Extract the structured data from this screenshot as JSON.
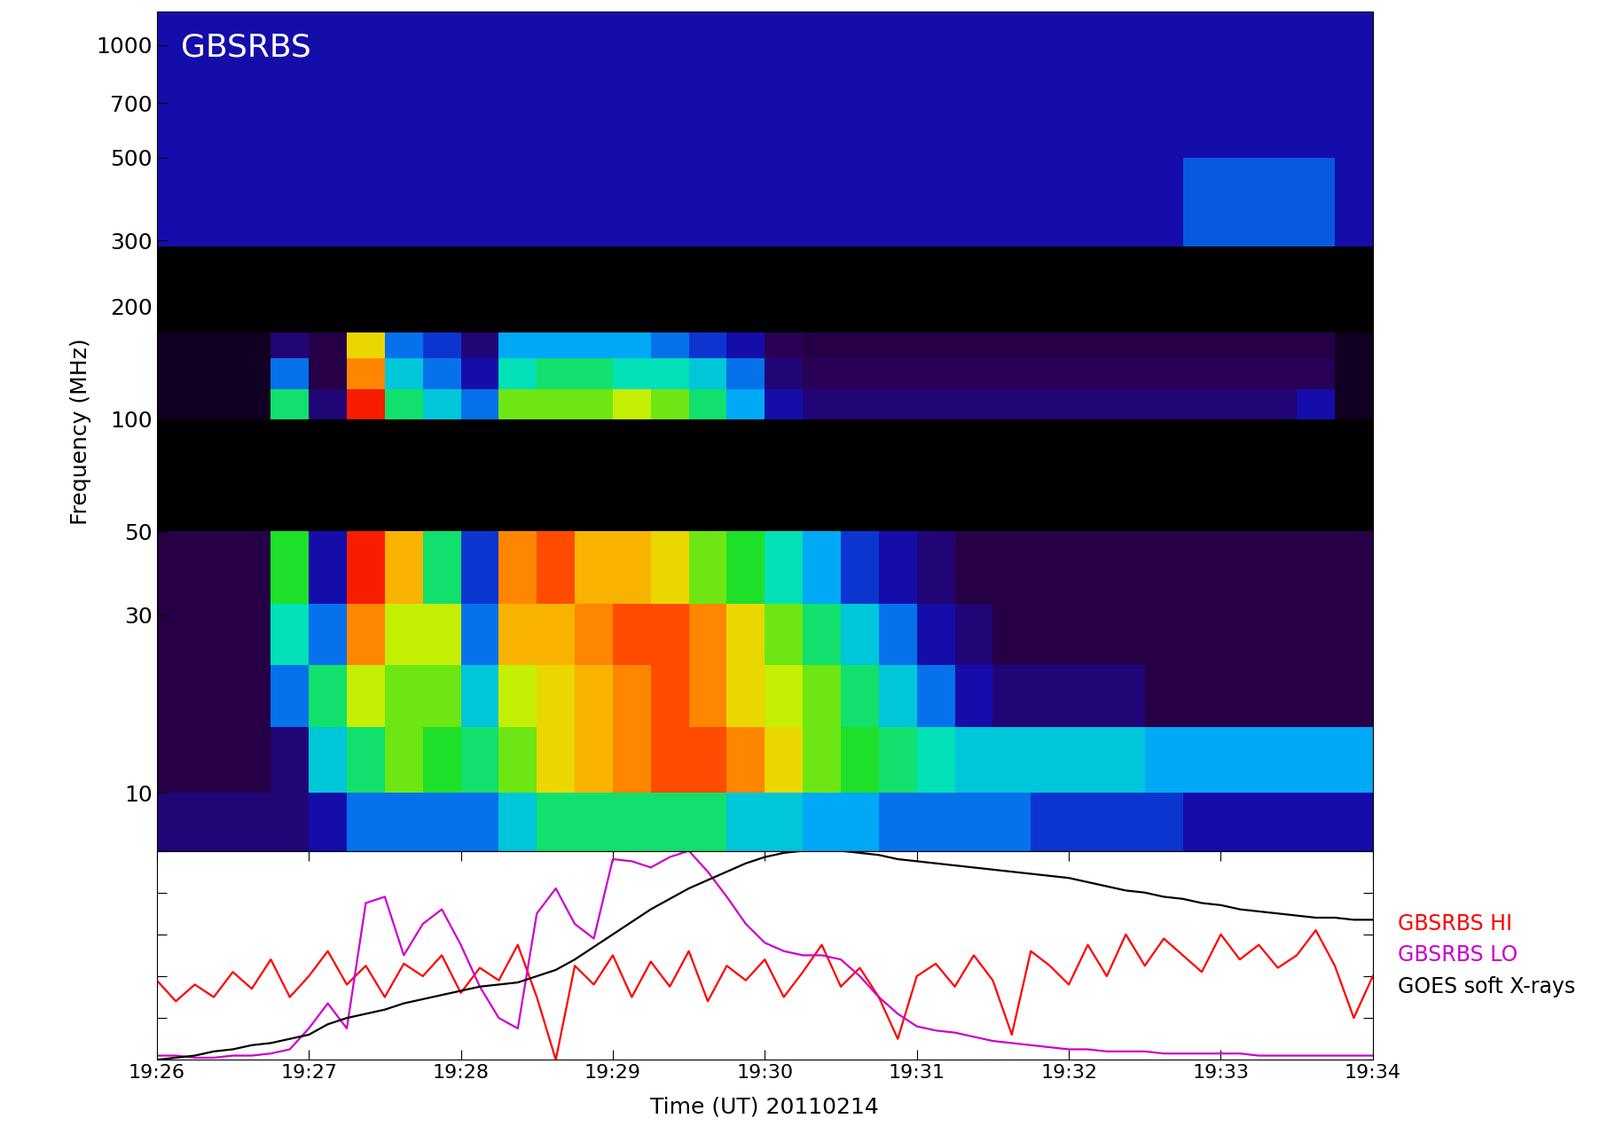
{
  "chart_data": [
    {
      "type": "heatmap",
      "title": "GBSRBS",
      "ylabel": "Frequency (MHz)",
      "log": "y",
      "tick_labels": "y",
      "xlim": [
        1166,
        1174
      ],
      "ylim": [
        7,
        1230
      ],
      "yticks": [
        10,
        30,
        50,
        100,
        200,
        300,
        500,
        700,
        1000
      ],
      "clim": [
        0,
        10
      ],
      "x_edges": [
        1166,
        1166.25,
        1166.5,
        1166.75,
        1167,
        1167.25,
        1167.5,
        1167.75,
        1168,
        1168.25,
        1168.5,
        1168.75,
        1169,
        1169.25,
        1169.5,
        1169.75,
        1170,
        1170.25,
        1170.5,
        1170.75,
        1171,
        1171.25,
        1171.5,
        1171.75,
        1172,
        1172.25,
        1172.5,
        1172.75,
        1173,
        1173.25,
        1173.5,
        1173.75,
        1174
      ],
      "y_edges": [
        7,
        10,
        15,
        22,
        32,
        50,
        100,
        120,
        145,
        170,
        290,
        500,
        800,
        1230
      ],
      "cells": [
        [
          1.5,
          1.5,
          1.5,
          1.5,
          2,
          3,
          3,
          3,
          3,
          4,
          5,
          5,
          5,
          5,
          5,
          4,
          4,
          3.5,
          3.5,
          3,
          3,
          3,
          3,
          2.5,
          2.5,
          2.5,
          2.5,
          2,
          2,
          2,
          2,
          2
        ],
        [
          1,
          1,
          1,
          1.5,
          4,
          5,
          6,
          5.5,
          5,
          6,
          7,
          7.5,
          8,
          8.5,
          8.5,
          8,
          7,
          6,
          5.5,
          5,
          4.5,
          4,
          4,
          4,
          4,
          4,
          3.5,
          3.5,
          3.5,
          3.5,
          3.5,
          3.5
        ],
        [
          1,
          1,
          1,
          3,
          5,
          6.5,
          6,
          6,
          4,
          6.5,
          7,
          7.5,
          8,
          8.5,
          8,
          7,
          6.5,
          6,
          5,
          4,
          3,
          2,
          1.5,
          1.5,
          1.5,
          1.5,
          1,
          1,
          1,
          1,
          1,
          1
        ],
        [
          1,
          1,
          1,
          4.5,
          3,
          8,
          6.5,
          6.5,
          3,
          7.5,
          7.5,
          8,
          8.5,
          8.5,
          8,
          7,
          6,
          5,
          4,
          3,
          2,
          1.5,
          1,
          1,
          1,
          1,
          1,
          1,
          1,
          1,
          1,
          1
        ],
        [
          1,
          1,
          1,
          5.5,
          2,
          9,
          7.5,
          5,
          2.5,
          8,
          8.5,
          7.5,
          7.5,
          7,
          6,
          5.5,
          4.5,
          3.5,
          2.5,
          2,
          1.5,
          1,
          1,
          1,
          1,
          1,
          1,
          1,
          1,
          1,
          1,
          1
        ],
        [
          null,
          null,
          null,
          null,
          null,
          null,
          null,
          null,
          null,
          null,
          null,
          null,
          null,
          null,
          null,
          null,
          null,
          null,
          null,
          null,
          null,
          null,
          null,
          null,
          null,
          null,
          null,
          null,
          null,
          null,
          null,
          null
        ],
        [
          0.5,
          0.5,
          0.5,
          5,
          1.5,
          9,
          5,
          4,
          3,
          6,
          6,
          6,
          6.5,
          6,
          5,
          3.5,
          2,
          1.5,
          1.5,
          1.5,
          1.5,
          1.5,
          1.5,
          1.5,
          1.5,
          1.5,
          1.5,
          1.5,
          1.5,
          1.5,
          2,
          0.5
        ],
        [
          0.5,
          0.5,
          0.5,
          3,
          1,
          8,
          4,
          3,
          2,
          4.5,
          5,
          5,
          4.5,
          4.5,
          4,
          3,
          1.5,
          1.2,
          1.2,
          1.2,
          1.2,
          1.2,
          1.2,
          1.2,
          1.2,
          1.2,
          1.2,
          1.2,
          1.2,
          1.2,
          1.2,
          0.5
        ],
        [
          0.5,
          0.5,
          0.5,
          1.5,
          1,
          7,
          3,
          2.5,
          1.5,
          3.5,
          3.5,
          3.5,
          3.5,
          3,
          2.5,
          2,
          1.2,
          1,
          1,
          1,
          1,
          1,
          1,
          1,
          1,
          1,
          1,
          1,
          1,
          1,
          1,
          0.5
        ],
        [
          null,
          null,
          null,
          null,
          null,
          null,
          null,
          null,
          null,
          null,
          null,
          null,
          null,
          null,
          null,
          null,
          null,
          null,
          null,
          null,
          null,
          null,
          null,
          null,
          null,
          null,
          null,
          null,
          null,
          null,
          null,
          null
        ],
        [
          2,
          2,
          2,
          2,
          2,
          2,
          2,
          2,
          2,
          2,
          2,
          2,
          2,
          2,
          2,
          2,
          2,
          2,
          2,
          2,
          2,
          2,
          2,
          2,
          2,
          2,
          2,
          2.8,
          2.8,
          2.8,
          2.8,
          2
        ],
        [
          2,
          2,
          2,
          2,
          2,
          2,
          2,
          2,
          2,
          2,
          2,
          2,
          2,
          2,
          2,
          2,
          2,
          2,
          2,
          2,
          2,
          2,
          2,
          2,
          2,
          2,
          2,
          2,
          2,
          2,
          2,
          2
        ],
        [
          2,
          2,
          2,
          2,
          2,
          2,
          2,
          2,
          2,
          2,
          2,
          2,
          2,
          2,
          2,
          2,
          2,
          2,
          2,
          2,
          2,
          2,
          2,
          2,
          2,
          2,
          2,
          2,
          2,
          2,
          2,
          2
        ]
      ]
    },
    {
      "type": "line",
      "xlabel": "Time (UT) 20110214",
      "tick_labels": "x",
      "legend": "right",
      "xlim": [
        1166,
        1174
      ],
      "ylim": [
        0,
        1
      ],
      "xticks": [
        {
          "value": 1166,
          "label": "19:26"
        },
        {
          "value": 1167,
          "label": "19:27"
        },
        {
          "value": 1168,
          "label": "19:28"
        },
        {
          "value": 1169,
          "label": "19:29"
        },
        {
          "value": 1170,
          "label": "19:30"
        },
        {
          "value": 1171,
          "label": "19:31"
        },
        {
          "value": 1172,
          "label": "19:32"
        },
        {
          "value": 1173,
          "label": "19:33"
        },
        {
          "value": 1174,
          "label": "19:34"
        }
      ],
      "yticks": [
        0,
        0.2,
        0.4,
        0.6,
        0.8,
        1
      ],
      "x": [
        1166,
        1166.125,
        1166.25,
        1166.375,
        1166.5,
        1166.625,
        1166.75,
        1166.875,
        1167,
        1167.125,
        1167.25,
        1167.375,
        1167.5,
        1167.625,
        1167.75,
        1167.875,
        1168,
        1168.125,
        1168.25,
        1168.375,
        1168.5,
        1168.625,
        1168.75,
        1168.875,
        1169,
        1169.125,
        1169.25,
        1169.375,
        1169.5,
        1169.625,
        1169.75,
        1169.875,
        1170,
        1170.125,
        1170.25,
        1170.375,
        1170.5,
        1170.625,
        1170.75,
        1170.875,
        1171,
        1171.125,
        1171.25,
        1171.375,
        1171.5,
        1171.625,
        1171.75,
        1171.875,
        1172,
        1172.125,
        1172.25,
        1172.375,
        1172.5,
        1172.625,
        1172.75,
        1172.875,
        1173,
        1173.125,
        1173.25,
        1173.375,
        1173.5,
        1173.625,
        1173.75,
        1173.875,
        1174
      ],
      "series": [
        {
          "name": "GBSRBS HI",
          "color": "#ff0000",
          "values": [
            0.38,
            0.28,
            0.36,
            0.3,
            0.42,
            0.34,
            0.48,
            0.3,
            0.4,
            0.52,
            0.36,
            0.45,
            0.3,
            0.46,
            0.4,
            0.5,
            0.32,
            0.44,
            0.38,
            0.55,
            0.3,
            0.0,
            0.45,
            0.36,
            0.5,
            0.3,
            0.47,
            0.35,
            0.52,
            0.28,
            0.45,
            0.38,
            0.48,
            0.3,
            0.42,
            0.55,
            0.35,
            0.44,
            0.3,
            0.1,
            0.4,
            0.46,
            0.35,
            0.5,
            0.38,
            0.12,
            0.52,
            0.45,
            0.36,
            0.55,
            0.4,
            0.6,
            0.45,
            0.58,
            0.5,
            0.42,
            0.6,
            0.48,
            0.55,
            0.44,
            0.5,
            0.62,
            0.45,
            0.2,
            0.4
          ]
        },
        {
          "name": "GBSRBS LO",
          "color": "#cc00cc",
          "values": [
            0.02,
            0.02,
            0.01,
            0.01,
            0.02,
            0.02,
            0.03,
            0.05,
            0.15,
            0.27,
            0.15,
            0.75,
            0.78,
            0.5,
            0.65,
            0.72,
            0.55,
            0.35,
            0.2,
            0.15,
            0.7,
            0.82,
            0.65,
            0.58,
            0.96,
            0.95,
            0.92,
            0.97,
            1.0,
            0.9,
            0.78,
            0.65,
            0.56,
            0.52,
            0.5,
            0.5,
            0.48,
            0.4,
            0.3,
            0.22,
            0.16,
            0.14,
            0.13,
            0.11,
            0.09,
            0.08,
            0.07,
            0.06,
            0.05,
            0.05,
            0.04,
            0.04,
            0.04,
            0.03,
            0.03,
            0.03,
            0.03,
            0.03,
            0.02,
            0.02,
            0.02,
            0.02,
            0.02,
            0.02,
            0.02
          ]
        },
        {
          "name": "GOES soft X-rays",
          "color": "#000000",
          "values": [
            0.0,
            0.01,
            0.02,
            0.04,
            0.05,
            0.07,
            0.08,
            0.1,
            0.12,
            0.17,
            0.2,
            0.22,
            0.24,
            0.27,
            0.29,
            0.31,
            0.33,
            0.35,
            0.36,
            0.37,
            0.4,
            0.43,
            0.48,
            0.54,
            0.6,
            0.66,
            0.72,
            0.77,
            0.82,
            0.86,
            0.9,
            0.94,
            0.97,
            0.99,
            1.0,
            1.0,
            1.0,
            0.99,
            0.98,
            0.96,
            0.95,
            0.94,
            0.93,
            0.92,
            0.91,
            0.9,
            0.89,
            0.88,
            0.87,
            0.85,
            0.83,
            0.81,
            0.8,
            0.78,
            0.77,
            0.75,
            0.74,
            0.72,
            0.71,
            0.7,
            0.69,
            0.68,
            0.68,
            0.67,
            0.67
          ]
        }
      ]
    }
  ]
}
